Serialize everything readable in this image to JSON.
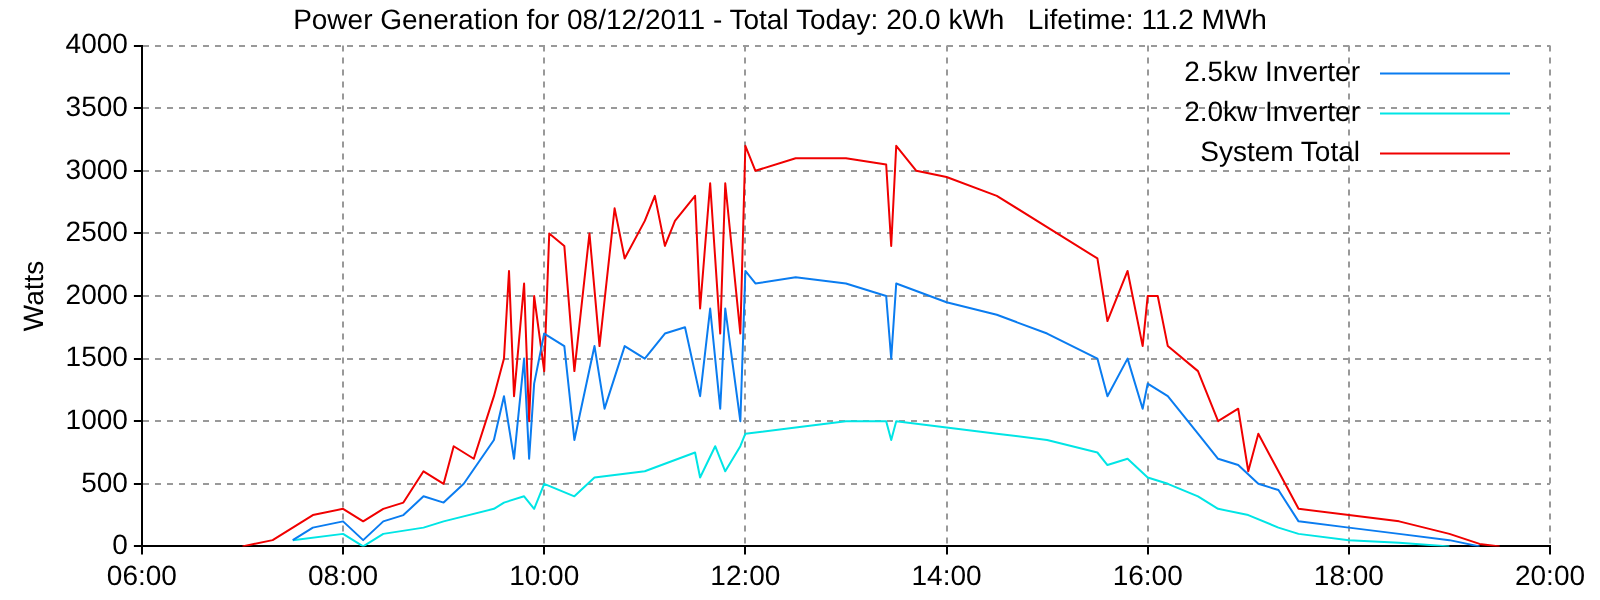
{
  "chart_data": {
    "type": "line",
    "title": "Power Generation for 08/12/2011 - Total Today: 20.0 kWh   Lifetime: 11.2 MWh",
    "ylabel": "Watts",
    "xlim": [
      6,
      20
    ],
    "xticks": [
      {
        "value": 6,
        "label": "06:00"
      },
      {
        "value": 8,
        "label": "08:00"
      },
      {
        "value": 10,
        "label": "10:00"
      },
      {
        "value": 12,
        "label": "12:00"
      },
      {
        "value": 14,
        "label": "14:00"
      },
      {
        "value": 16,
        "label": "16:00"
      },
      {
        "value": 18,
        "label": "18:00"
      },
      {
        "value": 20,
        "label": "20:00"
      }
    ],
    "ylim": [
      0,
      4000
    ],
    "yticks": [
      0,
      500,
      1000,
      1500,
      2000,
      2500,
      3000,
      3500,
      4000
    ],
    "grid": true,
    "legend": "top right",
    "marker": "none",
    "line_style": "solid",
    "series": [
      {
        "name": "2.5kw Inverter",
        "color": "#0a7cf0",
        "x": [
          7.5,
          7.7,
          8.0,
          8.2,
          8.4,
          8.6,
          8.8,
          9.0,
          9.2,
          9.5,
          9.6,
          9.7,
          9.8,
          9.85,
          9.9,
          10.0,
          10.2,
          10.3,
          10.5,
          10.6,
          10.8,
          11.0,
          11.2,
          11.4,
          11.55,
          11.65,
          11.75,
          11.8,
          11.95,
          12.0,
          12.1,
          12.5,
          13.0,
          13.4,
          13.45,
          13.5,
          14.0,
          14.5,
          15.0,
          15.5,
          15.6,
          15.8,
          15.95,
          16.0,
          16.2,
          16.5,
          16.7,
          16.9,
          17.1,
          17.3,
          17.5,
          18.0,
          18.5,
          19.0,
          19.3
        ],
        "values": [
          50,
          150,
          200,
          50,
          200,
          250,
          400,
          350,
          500,
          850,
          1200,
          700,
          1500,
          700,
          1300,
          1700,
          1600,
          850,
          1600,
          1100,
          1600,
          1500,
          1700,
          1750,
          1200,
          1900,
          1100,
          1900,
          1000,
          2200,
          2100,
          2150,
          2100,
          2000,
          1500,
          2100,
          1950,
          1850,
          1700,
          1500,
          1200,
          1500,
          1100,
          1300,
          1200,
          900,
          700,
          650,
          500,
          450,
          200,
          150,
          100,
          50,
          0
        ]
      },
      {
        "name": "2.0kw Inverter",
        "color": "#00e5e5",
        "x": [
          7.5,
          8.0,
          8.2,
          8.4,
          8.8,
          9.0,
          9.5,
          9.6,
          9.8,
          9.9,
          10.0,
          10.3,
          10.5,
          11.0,
          11.5,
          11.55,
          11.7,
          11.8,
          11.95,
          12.0,
          12.5,
          13.0,
          13.4,
          13.45,
          13.5,
          14.0,
          14.5,
          15.0,
          15.5,
          15.6,
          15.8,
          16.0,
          16.2,
          16.5,
          16.7,
          17.0,
          17.3,
          17.5,
          18.0,
          18.5,
          19.0
        ],
        "values": [
          50,
          100,
          0,
          100,
          150,
          200,
          300,
          350,
          400,
          300,
          500,
          400,
          550,
          600,
          750,
          550,
          800,
          600,
          800,
          900,
          950,
          1000,
          1000,
          850,
          1000,
          950,
          900,
          850,
          750,
          650,
          700,
          550,
          500,
          400,
          300,
          250,
          150,
          100,
          50,
          30,
          0
        ]
      },
      {
        "name": "System Total",
        "color": "#f00000",
        "x": [
          7.0,
          7.3,
          7.5,
          7.7,
          8.0,
          8.2,
          8.4,
          8.6,
          8.8,
          9.0,
          9.1,
          9.3,
          9.5,
          9.6,
          9.65,
          9.7,
          9.8,
          9.85,
          9.9,
          10.0,
          10.05,
          10.2,
          10.3,
          10.45,
          10.55,
          10.7,
          10.8,
          11.0,
          11.1,
          11.2,
          11.3,
          11.5,
          11.55,
          11.65,
          11.75,
          11.8,
          11.95,
          12.0,
          12.1,
          12.5,
          13.0,
          13.4,
          13.45,
          13.5,
          13.7,
          14.0,
          14.5,
          15.0,
          15.5,
          15.6,
          15.8,
          15.95,
          16.0,
          16.1,
          16.2,
          16.5,
          16.7,
          16.9,
          17.0,
          17.1,
          17.3,
          17.5,
          18.0,
          18.5,
          19.0,
          19.3,
          19.5
        ],
        "values": [
          0,
          50,
          150,
          250,
          300,
          200,
          300,
          350,
          600,
          500,
          800,
          700,
          1200,
          1500,
          2200,
          1200,
          2100,
          1000,
          2000,
          1400,
          2500,
          2400,
          1400,
          2500,
          1600,
          2700,
          2300,
          2600,
          2800,
          2400,
          2600,
          2800,
          1900,
          2900,
          1700,
          2900,
          1700,
          3200,
          3000,
          3100,
          3100,
          3050,
          2400,
          3200,
          3000,
          2950,
          2800,
          2550,
          2300,
          1800,
          2200,
          1600,
          2000,
          2000,
          1600,
          1400,
          1000,
          1100,
          600,
          900,
          600,
          300,
          250,
          200,
          100,
          20,
          0
        ]
      }
    ]
  }
}
